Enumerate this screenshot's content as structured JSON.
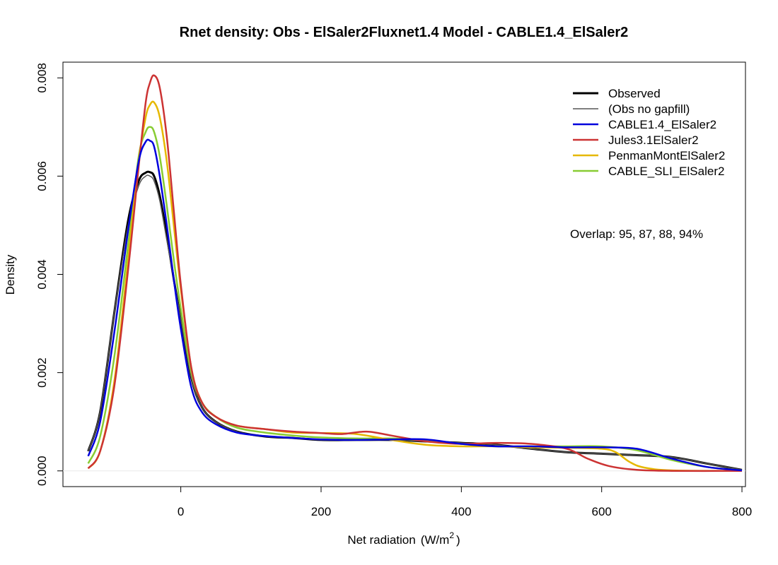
{
  "chart_data": {
    "type": "line",
    "title": "Rnet density:   Obs - ElSaler2Fluxnet1.4   Model - CABLE1.4_ElSaler2",
    "xlabel": "Net radiation",
    "xlabel_unit_prefix": "(W/m",
    "xlabel_unit_sup": "2",
    "xlabel_unit_suffix": ")",
    "ylabel": "Density",
    "xlim": [
      -168,
      805
    ],
    "ylim": [
      -0.00032,
      0.00832
    ],
    "x_ticks": [
      0,
      200,
      400,
      600,
      800
    ],
    "x_tick_labels": [
      "0",
      "200",
      "400",
      "600",
      "800"
    ],
    "y_ticks": [
      0.0,
      0.002,
      0.004,
      0.006,
      0.008
    ],
    "y_tick_labels": [
      "0.000",
      "0.002",
      "0.004",
      "0.006",
      "0.008"
    ],
    "grid": false,
    "legend_position": "top-right",
    "annotation": "Overlap: 95, 87, 88, 94%",
    "series": [
      {
        "name": "Observed",
        "color": "#000000",
        "x": [
          -132,
          -115,
          -95,
          -75,
          -60,
          -50,
          -44,
          -38,
          -30,
          -20,
          -10,
          0,
          15,
          30,
          50,
          80,
          120,
          160,
          200,
          250,
          300,
          350,
          400,
          450,
          500,
          550,
          600,
          650,
          700,
          750,
          800
        ],
        "y": [
          0.0004,
          0.0012,
          0.0032,
          0.0051,
          0.0059,
          0.00607,
          0.00608,
          0.006,
          0.0056,
          0.0048,
          0.0039,
          0.0031,
          0.0019,
          0.0013,
          0.001,
          0.0008,
          0.0007,
          0.00067,
          0.00063,
          0.00063,
          0.00063,
          0.0006,
          0.00057,
          0.00053,
          0.00045,
          0.00038,
          0.00035,
          0.00032,
          0.00028,
          0.00015,
          2e-05
        ]
      },
      {
        "name": "(Obs no gapfill)",
        "color": "#555555",
        "x": [
          -132,
          -115,
          -95,
          -75,
          -60,
          -50,
          -44,
          -38,
          -30,
          -20,
          -10,
          0,
          15,
          30,
          50,
          80,
          120,
          160,
          200,
          250,
          300,
          350,
          400,
          450,
          500,
          550,
          600,
          650,
          700,
          750,
          800
        ],
        "y": [
          0.0004,
          0.0012,
          0.0032,
          0.005,
          0.0058,
          0.006,
          0.006,
          0.0059,
          0.0055,
          0.0047,
          0.0039,
          0.0031,
          0.0019,
          0.0013,
          0.001,
          0.0008,
          0.0007,
          0.00067,
          0.00063,
          0.00063,
          0.00063,
          0.0006,
          0.00057,
          0.00053,
          0.00045,
          0.00038,
          0.00035,
          0.00032,
          0.00028,
          0.00015,
          2e-05
        ]
      },
      {
        "name": "CABLE1.4_ElSaler2",
        "color": "#0000dd",
        "x": [
          -132,
          -115,
          -95,
          -75,
          -60,
          -50,
          -44,
          -38,
          -30,
          -20,
          -10,
          0,
          15,
          30,
          50,
          80,
          120,
          160,
          200,
          250,
          300,
          350,
          400,
          450,
          500,
          550,
          600,
          650,
          700,
          750,
          800
        ],
        "y": [
          0.0003,
          0.001,
          0.0028,
          0.0049,
          0.0063,
          0.0067,
          0.00672,
          0.0066,
          0.006,
          0.005,
          0.0039,
          0.0029,
          0.0017,
          0.0012,
          0.00095,
          0.00078,
          0.00071,
          0.00067,
          0.00064,
          0.00063,
          0.00064,
          0.00064,
          0.00055,
          0.0005,
          0.0005,
          0.00048,
          0.00048,
          0.00045,
          0.00025,
          8e-05,
          1e-05
        ]
      },
      {
        "name": "Jules3.1ElSaler2",
        "color": "#cc3333",
        "x": [
          -132,
          -115,
          -95,
          -75,
          -60,
          -50,
          -44,
          -38,
          -30,
          -20,
          -10,
          0,
          15,
          30,
          50,
          80,
          120,
          160,
          200,
          230,
          265,
          300,
          350,
          400,
          450,
          500,
          550,
          580,
          610,
          650,
          700,
          800
        ],
        "y": [
          5e-05,
          0.0004,
          0.0017,
          0.0041,
          0.0062,
          0.0075,
          0.0079,
          0.00805,
          0.0078,
          0.0068,
          0.0053,
          0.0038,
          0.0021,
          0.0014,
          0.0011,
          0.00092,
          0.00085,
          0.0008,
          0.00077,
          0.00075,
          0.0008,
          0.00072,
          0.0006,
          0.00055,
          0.00057,
          0.00055,
          0.00045,
          0.00025,
          0.0001,
          2e-05,
          0.0,
          0.0
        ]
      },
      {
        "name": "PenmanMontElSaler2",
        "color": "#e6b800",
        "x": [
          -132,
          -115,
          -95,
          -75,
          -60,
          -50,
          -44,
          -38,
          -30,
          -20,
          -10,
          0,
          15,
          30,
          50,
          80,
          120,
          160,
          200,
          250,
          300,
          350,
          400,
          450,
          500,
          550,
          600,
          620,
          640,
          660,
          700,
          800
        ],
        "y": [
          5e-05,
          0.0004,
          0.0018,
          0.0043,
          0.0063,
          0.0072,
          0.00745,
          0.0075,
          0.0072,
          0.0063,
          0.005,
          0.0037,
          0.0021,
          0.0014,
          0.0011,
          0.00092,
          0.00085,
          0.00078,
          0.00077,
          0.00075,
          0.00063,
          0.00053,
          0.0005,
          0.0005,
          0.00048,
          0.00047,
          0.00045,
          0.00038,
          0.00018,
          7e-05,
          1e-05,
          0.0
        ]
      },
      {
        "name": "CABLE_SLI_ElSaler2",
        "color": "#88cc33",
        "x": [
          -132,
          -115,
          -95,
          -75,
          -60,
          -50,
          -44,
          -38,
          -30,
          -20,
          -10,
          0,
          15,
          30,
          50,
          80,
          120,
          160,
          200,
          250,
          300,
          350,
          400,
          450,
          500,
          550,
          600,
          650,
          700,
          750,
          800
        ],
        "y": [
          0.00015,
          0.0007,
          0.0023,
          0.0046,
          0.0064,
          0.0069,
          0.007,
          0.0069,
          0.0064,
          0.0054,
          0.0043,
          0.0033,
          0.002,
          0.0014,
          0.0011,
          0.00088,
          0.00078,
          0.00072,
          0.00068,
          0.00066,
          0.00066,
          0.00062,
          0.00055,
          0.0005,
          0.0005,
          0.0005,
          0.0005,
          0.00042,
          0.00022,
          8e-05,
          1e-05
        ]
      }
    ]
  }
}
